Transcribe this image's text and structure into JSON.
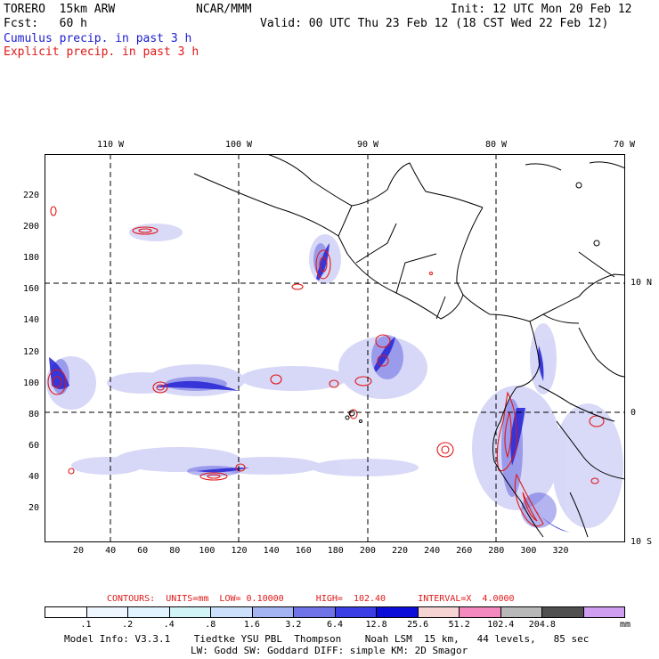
{
  "header": {
    "model": "TORERO  15km ARW",
    "org": "NCAR/MMM",
    "init": "Init: 12 UTC Mon 20 Feb 12",
    "fcst": "Fcst:   60 h",
    "valid": "Valid: 00 UTC Thu 23 Feb 12 (18 CST Wed 22 Feb 12)",
    "field_cumulus": "Cumulus precip. in past 3 h",
    "field_explicit": "Explicit precip. in past 3 h"
  },
  "colors": {
    "cumulus": "#2a2ad6",
    "explicit": "#e01818",
    "grid": "#000000",
    "coast": "#000000"
  },
  "axes": {
    "top_lon_labels": [
      "110 W",
      "100 W",
      "90 W",
      "80 W",
      "70 W"
    ],
    "right_lat_labels": [
      "10 N",
      "0",
      "10 S"
    ],
    "x_ticks": [
      "20",
      "40",
      "60",
      "80",
      "100",
      "120",
      "140",
      "160",
      "180",
      "200",
      "220",
      "240",
      "260",
      "280",
      "300",
      "320"
    ],
    "y_ticks": [
      "20",
      "40",
      "60",
      "80",
      "100",
      "120",
      "140",
      "160",
      "180",
      "200",
      "220"
    ]
  },
  "contour_info": {
    "label": "CONTOURS:  UNITS=mm  LOW= 0.10000      HIGH=  102.40      INTERVAL=X  4.0000"
  },
  "legend": {
    "colors": [
      "#ffffff",
      "#eef7ff",
      "#e2f4ff",
      "#d3f4f7",
      "#cde0fb",
      "#a4b3f2",
      "#7073e8",
      "#3a3ee4",
      "#0d0dd9",
      "#f7d4d4",
      "#f489c0",
      "#b8b8b8",
      "#505050",
      "#cf9ef1"
    ],
    "levels": [
      ".1",
      ".2",
      ".4",
      ".8",
      "1.6",
      "3.2",
      "6.4",
      "12.8",
      "25.6",
      "51.2",
      "102.4",
      "204.8"
    ],
    "units": "mm"
  },
  "footer": {
    "line1": "Model Info: V3.3.1    Tiedtke YSU PBL  Thompson    Noah LSM  15 km,   44 levels,   85 sec",
    "line2": "LW: Godd SW: Goddard DIFF: simple KM: 2D Smagor"
  }
}
